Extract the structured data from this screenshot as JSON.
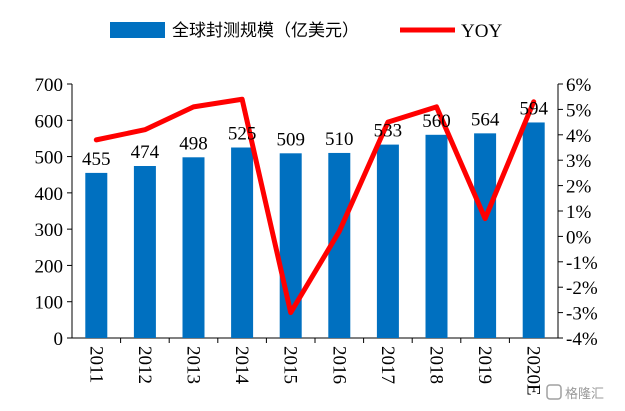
{
  "chart_data": {
    "type": "bar+line",
    "categories": [
      "2011",
      "2012",
      "2013",
      "2014",
      "2015",
      "2016",
      "2017",
      "2018",
      "2019",
      "2020E"
    ],
    "series": [
      {
        "name": "全球封测规模（亿美元）",
        "type": "bar",
        "axis": "left",
        "color": "#0070C0",
        "values": [
          455,
          474,
          498,
          525,
          509,
          510,
          533,
          560,
          564,
          594
        ]
      },
      {
        "name": "YOY",
        "type": "line",
        "axis": "right",
        "color": "#FF0000",
        "values": [
          3.8,
          4.2,
          5.1,
          5.4,
          -3.0,
          0.2,
          4.5,
          5.1,
          0.7,
          5.3
        ]
      }
    ],
    "y_left": {
      "min": 0,
      "max": 700,
      "step": 100,
      "tick_labels": [
        "0",
        "100",
        "200",
        "300",
        "400",
        "500",
        "600",
        "700"
      ]
    },
    "y_right": {
      "min": -4,
      "max": 6,
      "step": 1,
      "tick_labels": [
        "-4%",
        "-3%",
        "-2%",
        "-1%",
        "0%",
        "1%",
        "2%",
        "3%",
        "4%",
        "5%",
        "6%"
      ]
    },
    "data_labels": [
      "455",
      "474",
      "498",
      "525",
      "509",
      "510",
      "533",
      "560",
      "564",
      "594"
    ],
    "legend": {
      "placement": "top"
    },
    "grid": false
  },
  "watermark": {
    "text": "格隆汇"
  }
}
